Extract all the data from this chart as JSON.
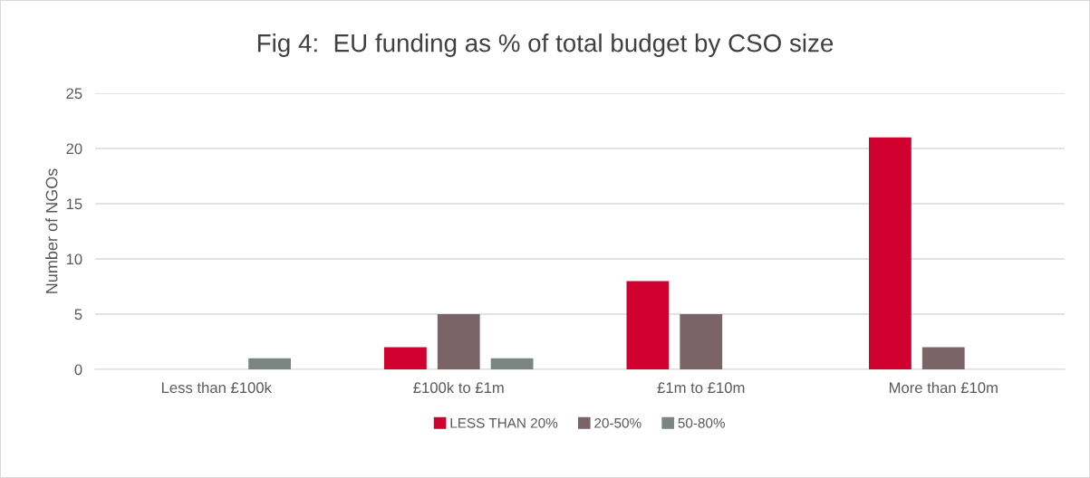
{
  "chart_data": {
    "type": "bar",
    "title": "Fig 4:  EU funding as % of total budget by CSO size",
    "ylabel": "Number of NGOs",
    "categories": [
      "Less than £100k",
      "£100k to £1m",
      "£1m to £10m",
      "More than £10m"
    ],
    "series": [
      {
        "name": "LESS THAN 20%",
        "color": "#d0002f",
        "values": [
          0,
          2,
          8,
          21
        ]
      },
      {
        "name": "20-50%",
        "color": "#7b6468",
        "values": [
          0,
          5,
          5,
          2
        ]
      },
      {
        "name": "50-80%",
        "color": "#7a8583",
        "values": [
          1,
          1,
          0,
          0
        ]
      }
    ],
    "ylim": [
      0,
      25
    ],
    "yticks": [
      0,
      5,
      10,
      15,
      20,
      25
    ],
    "grid": "y",
    "legend": "bottom"
  }
}
